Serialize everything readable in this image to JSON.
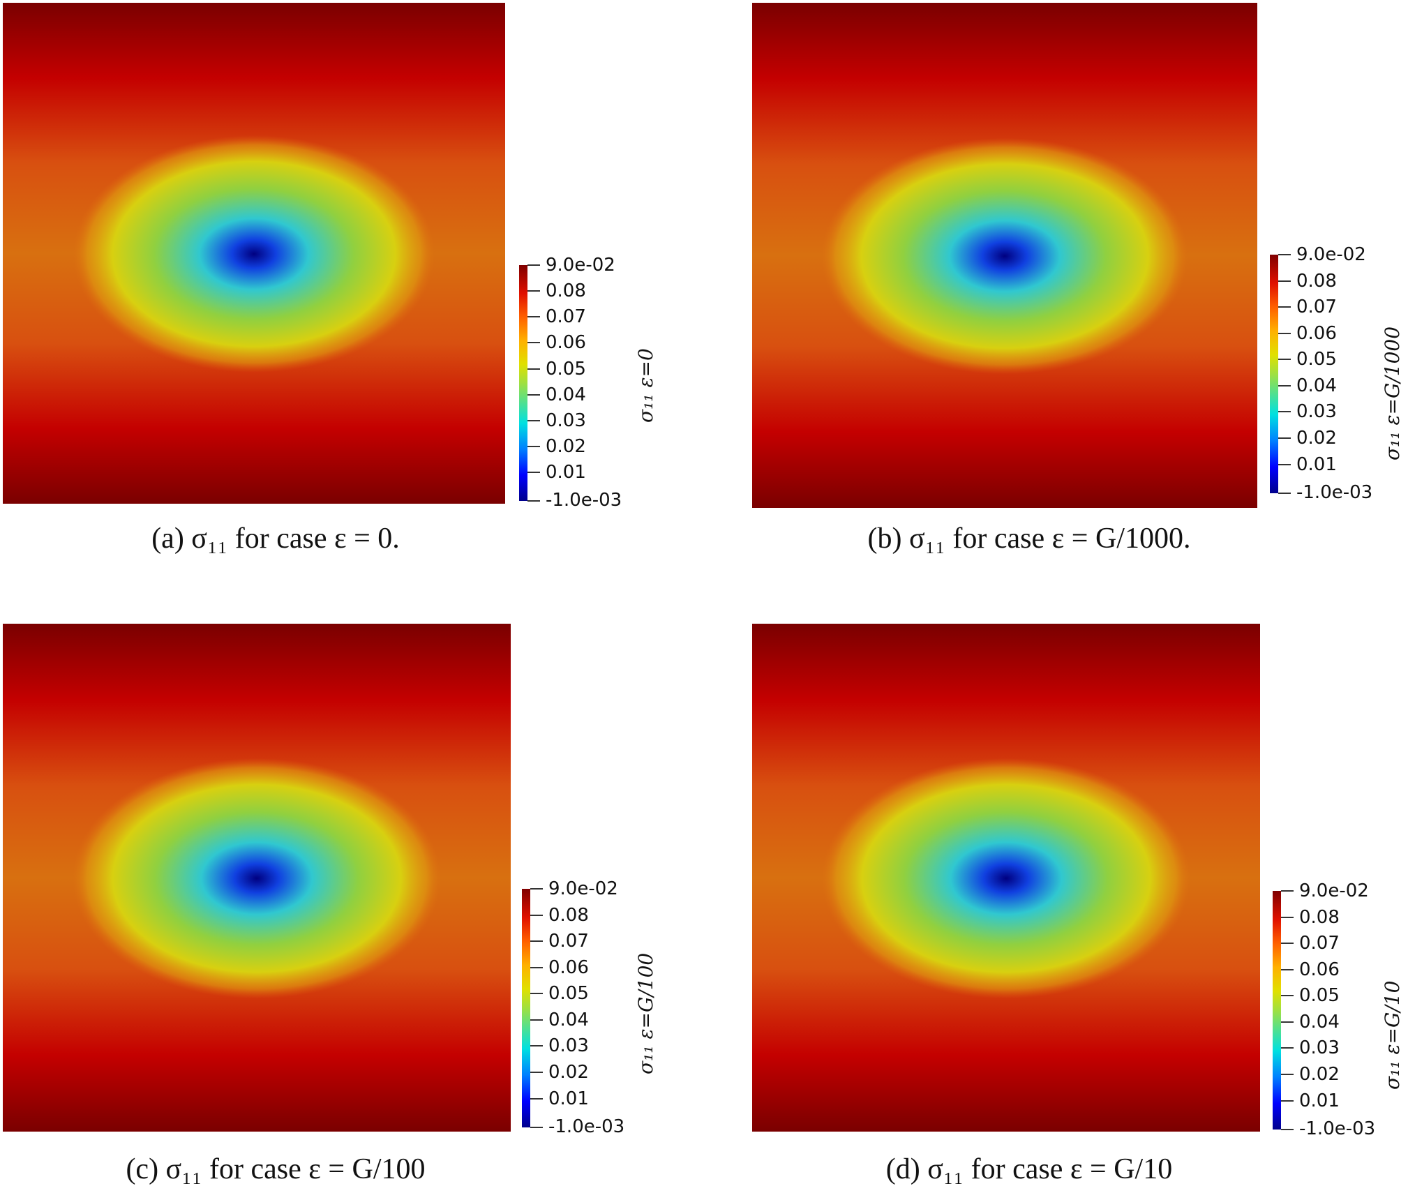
{
  "panels": [
    {
      "caption": "(a) σ₁₁ for case ε = 0.",
      "colorbar_title": "σ₁₁ ε=0",
      "colorbar_max": "9.0e-02",
      "colorbar_min": "-1.0e-03",
      "colorbar_ticks": [
        "0.08",
        "0.07",
        "0.06",
        "0.05",
        "0.04",
        "0.03",
        "0.02",
        "0.01"
      ]
    },
    {
      "caption": "(b) σ₁₁ for case ε = G/1000.",
      "colorbar_title": "σ₁₁ ε=G/1000",
      "colorbar_max": "9.0e-02",
      "colorbar_min": "-1.0e-03",
      "colorbar_ticks": [
        "0.08",
        "0.07",
        "0.06",
        "0.05",
        "0.04",
        "0.03",
        "0.02",
        "0.01"
      ]
    },
    {
      "caption": "(c) σ₁₁ for case ε = G/100",
      "colorbar_title": "σ₁₁ ε=G/100",
      "colorbar_max": "9.0e-02",
      "colorbar_min": "-1.0e-03",
      "colorbar_ticks": [
        "0.08",
        "0.07",
        "0.06",
        "0.05",
        "0.04",
        "0.03",
        "0.02",
        "0.01"
      ]
    },
    {
      "caption": "(d) σ₁₁ for case ε = G/10",
      "colorbar_title": "σ₁₁ ε=G/10",
      "colorbar_max": "9.0e-02",
      "colorbar_min": "-1.0e-03",
      "colorbar_ticks": [
        "0.08",
        "0.07",
        "0.06",
        "0.05",
        "0.04",
        "0.03",
        "0.02",
        "0.01"
      ]
    }
  ],
  "colors": {
    "field_outer": "#8b0000",
    "field_mid": "#d42000",
    "field_band": "#e06010",
    "field_yellow": "#d8d010",
    "field_cyan": "#30c8c8",
    "field_core": "#000090"
  }
}
